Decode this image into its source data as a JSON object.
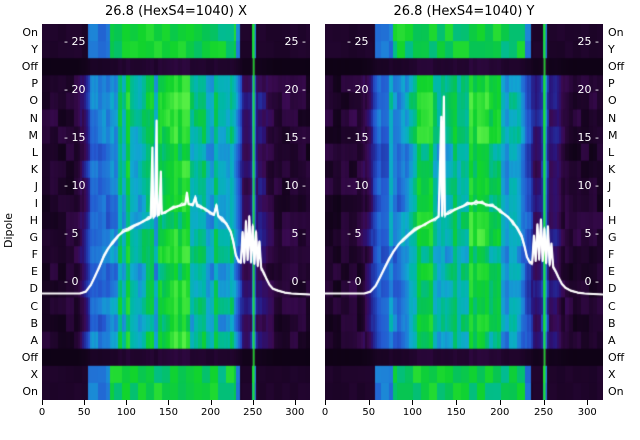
{
  "dipole_axis_label": "Dipole",
  "row_labels": [
    "On",
    "Y",
    "Off",
    "P",
    "O",
    "N",
    "M",
    "L",
    "K",
    "J",
    "I",
    "H",
    "G",
    "F",
    "E",
    "D",
    "C",
    "B",
    "A",
    "Off",
    "X",
    "On"
  ],
  "colors": {
    "background": "#ffffff",
    "title_text": "#000000",
    "axis_text": "#000000",
    "inner_tick_text": "#ffffff",
    "overlay_line": "#ffffff",
    "marker_line_green": "#28e132",
    "heat_stops": [
      {
        "v": 0.0,
        "c": "#0c0212"
      },
      {
        "v": 0.1,
        "c": "#22052f"
      },
      {
        "v": 0.17,
        "c": "#3a0a52"
      },
      {
        "v": 0.24,
        "c": "#2a1278"
      },
      {
        "v": 0.32,
        "c": "#2135a8"
      },
      {
        "v": 0.42,
        "c": "#2458d0"
      },
      {
        "v": 0.52,
        "c": "#1f7fd8"
      },
      {
        "v": 0.6,
        "c": "#10a8d0"
      },
      {
        "v": 0.68,
        "c": "#00b8a8"
      },
      {
        "v": 0.76,
        "c": "#06c455"
      },
      {
        "v": 0.85,
        "c": "#12d42c"
      },
      {
        "v": 1.0,
        "c": "#55ee44"
      }
    ]
  },
  "chart_data": [
    {
      "type": "heatmap",
      "title": "26.8 (HexS4=1040) X",
      "x_range": [
        0,
        318
      ],
      "x_ticks": [
        0,
        50,
        100,
        150,
        200,
        250,
        300
      ],
      "value_ticks": [
        25,
        20,
        15,
        10,
        5,
        0
      ],
      "rows": [
        "On",
        "Y",
        "Off",
        "P",
        "O",
        "N",
        "M",
        "L",
        "K",
        "J",
        "I",
        "H",
        "G",
        "F",
        "E",
        "D",
        "C",
        "B",
        "A",
        "Off",
        "X",
        "On"
      ],
      "off_rows": [
        2,
        19
      ],
      "edge_rows": [
        0,
        1,
        20,
        21
      ],
      "green_marker_x": 250,
      "heat_profile": [
        [
          0,
          0.1
        ],
        [
          25,
          0.11
        ],
        [
          42,
          0.12
        ],
        [
          50,
          0.3
        ],
        [
          56,
          0.5
        ],
        [
          64,
          0.58
        ],
        [
          72,
          0.6
        ],
        [
          80,
          0.62
        ],
        [
          88,
          0.68
        ],
        [
          96,
          0.8
        ],
        [
          104,
          0.86
        ],
        [
          112,
          0.82
        ],
        [
          120,
          0.88
        ],
        [
          128,
          0.84
        ],
        [
          136,
          0.8
        ],
        [
          144,
          0.9
        ],
        [
          152,
          0.95
        ],
        [
          160,
          0.92
        ],
        [
          168,
          0.95
        ],
        [
          176,
          0.93
        ],
        [
          184,
          0.88
        ],
        [
          192,
          0.86
        ],
        [
          200,
          0.82
        ],
        [
          208,
          0.78
        ],
        [
          216,
          0.74
        ],
        [
          222,
          0.7
        ],
        [
          228,
          0.62
        ],
        [
          233,
          0.45
        ],
        [
          237,
          0.28
        ],
        [
          241,
          0.22
        ],
        [
          245,
          0.26
        ],
        [
          248,
          0.35
        ],
        [
          250,
          0.92
        ],
        [
          252,
          0.45
        ],
        [
          255,
          0.22
        ],
        [
          259,
          0.24
        ],
        [
          263,
          0.26
        ],
        [
          267,
          0.2
        ],
        [
          271,
          0.15
        ],
        [
          276,
          0.13
        ],
        [
          282,
          0.12
        ],
        [
          292,
          0.11
        ],
        [
          303,
          0.1
        ],
        [
          318,
          0.1
        ]
      ],
      "overlay_line": {
        "name": "beam intensity profile",
        "points": [
          [
            0,
            -1.2
          ],
          [
            30,
            -1.2
          ],
          [
            45,
            -1.2
          ],
          [
            52,
            -1.0
          ],
          [
            58,
            -0.3
          ],
          [
            63,
            0.6
          ],
          [
            68,
            1.6
          ],
          [
            73,
            2.6
          ],
          [
            78,
            3.4
          ],
          [
            84,
            4.2
          ],
          [
            90,
            4.8
          ],
          [
            96,
            5.2
          ],
          [
            102,
            5.5
          ],
          [
            108,
            5.8
          ],
          [
            114,
            6.0
          ],
          [
            120,
            6.3
          ],
          [
            126,
            6.6
          ],
          [
            129,
            6.7
          ],
          [
            131,
            14.0
          ],
          [
            132,
            6.8
          ],
          [
            134,
            6.9
          ],
          [
            136,
            16.8
          ],
          [
            137,
            7.0
          ],
          [
            139,
            7.0
          ],
          [
            141,
            11.5
          ],
          [
            142,
            7.1
          ],
          [
            146,
            7.3
          ],
          [
            151,
            7.5
          ],
          [
            156,
            7.7
          ],
          [
            161,
            7.9
          ],
          [
            166,
            8.0
          ],
          [
            170,
            8.1
          ],
          [
            172,
            9.3
          ],
          [
            174,
            8.1
          ],
          [
            179,
            8.0
          ],
          [
            182,
            8.8
          ],
          [
            184,
            7.9
          ],
          [
            189,
            7.8
          ],
          [
            194,
            7.6
          ],
          [
            199,
            7.3
          ],
          [
            204,
            7.0
          ],
          [
            207,
            8.0
          ],
          [
            209,
            6.9
          ],
          [
            214,
            6.5
          ],
          [
            219,
            6.0
          ],
          [
            224,
            5.2
          ],
          [
            227,
            4.2
          ],
          [
            230,
            2.8
          ],
          [
            233,
            2.2
          ],
          [
            236,
            2.0
          ],
          [
            238,
            5.2
          ],
          [
            240,
            2.1
          ],
          [
            242,
            6.3
          ],
          [
            244,
            2.3
          ],
          [
            246,
            6.8
          ],
          [
            248,
            2.1
          ],
          [
            250,
            5.8
          ],
          [
            252,
            1.9
          ],
          [
            254,
            5.2
          ],
          [
            256,
            1.7
          ],
          [
            258,
            4.2
          ],
          [
            260,
            1.5
          ],
          [
            263,
            1.0
          ],
          [
            266,
            0.4
          ],
          [
            270,
            -0.3
          ],
          [
            274,
            -0.7
          ],
          [
            280,
            -0.9
          ],
          [
            288,
            -1.1
          ],
          [
            296,
            -1.2
          ],
          [
            306,
            -1.25
          ],
          [
            318,
            -1.3
          ]
        ]
      }
    },
    {
      "type": "heatmap",
      "title": "26.8 (HexS4=1040) Y",
      "x_range": [
        0,
        318
      ],
      "x_ticks": [
        0,
        50,
        100,
        150,
        200,
        250,
        300
      ],
      "value_ticks": [
        25,
        20,
        15,
        10,
        5,
        0
      ],
      "rows": [
        "On",
        "Y",
        "Off",
        "P",
        "O",
        "N",
        "M",
        "L",
        "K",
        "J",
        "I",
        "H",
        "G",
        "F",
        "E",
        "D",
        "C",
        "B",
        "A",
        "Off",
        "X",
        "On"
      ],
      "off_rows": [
        2,
        19
      ],
      "edge_rows": [
        0,
        1,
        20,
        21
      ],
      "green_marker_x": 250,
      "heat_profile": [
        [
          0,
          0.1
        ],
        [
          25,
          0.11
        ],
        [
          42,
          0.12
        ],
        [
          50,
          0.28
        ],
        [
          56,
          0.48
        ],
        [
          64,
          0.56
        ],
        [
          72,
          0.6
        ],
        [
          80,
          0.63
        ],
        [
          88,
          0.7
        ],
        [
          96,
          0.8
        ],
        [
          104,
          0.85
        ],
        [
          112,
          0.83
        ],
        [
          120,
          0.87
        ],
        [
          128,
          0.85
        ],
        [
          136,
          0.82
        ],
        [
          144,
          0.9
        ],
        [
          152,
          0.94
        ],
        [
          160,
          0.93
        ],
        [
          168,
          0.96
        ],
        [
          176,
          0.94
        ],
        [
          184,
          0.9
        ],
        [
          192,
          0.87
        ],
        [
          200,
          0.83
        ],
        [
          208,
          0.8
        ],
        [
          216,
          0.76
        ],
        [
          222,
          0.72
        ],
        [
          228,
          0.64
        ],
        [
          233,
          0.48
        ],
        [
          237,
          0.3
        ],
        [
          241,
          0.24
        ],
        [
          245,
          0.27
        ],
        [
          248,
          0.36
        ],
        [
          250,
          0.92
        ],
        [
          252,
          0.46
        ],
        [
          255,
          0.23
        ],
        [
          259,
          0.25
        ],
        [
          263,
          0.27
        ],
        [
          267,
          0.21
        ],
        [
          271,
          0.16
        ],
        [
          276,
          0.13
        ],
        [
          282,
          0.12
        ],
        [
          292,
          0.11
        ],
        [
          303,
          0.1
        ],
        [
          318,
          0.1
        ]
      ],
      "overlay_line": {
        "name": "beam intensity profile",
        "points": [
          [
            0,
            -1.2
          ],
          [
            30,
            -1.2
          ],
          [
            45,
            -1.2
          ],
          [
            52,
            -1.0
          ],
          [
            58,
            -0.4
          ],
          [
            63,
            0.5
          ],
          [
            68,
            1.4
          ],
          [
            73,
            2.3
          ],
          [
            78,
            3.1
          ],
          [
            84,
            3.9
          ],
          [
            90,
            4.5
          ],
          [
            96,
            5.0
          ],
          [
            102,
            5.4
          ],
          [
            108,
            5.7
          ],
          [
            114,
            6.0
          ],
          [
            120,
            6.3
          ],
          [
            126,
            6.6
          ],
          [
            130,
            6.8
          ],
          [
            133,
            17.2
          ],
          [
            134,
            6.9
          ],
          [
            136,
            19.3
          ],
          [
            137,
            7.0
          ],
          [
            140,
            7.1
          ],
          [
            144,
            7.3
          ],
          [
            148,
            7.5
          ],
          [
            153,
            7.7
          ],
          [
            158,
            7.9
          ],
          [
            163,
            8.1
          ],
          [
            168,
            8.2
          ],
          [
            173,
            8.3
          ],
          [
            176,
            8.3
          ],
          [
            180,
            8.2
          ],
          [
            184,
            8.1
          ],
          [
            188,
            8.0
          ],
          [
            192,
            7.9
          ],
          [
            196,
            7.7
          ],
          [
            200,
            7.4
          ],
          [
            205,
            7.1
          ],
          [
            210,
            6.7
          ],
          [
            215,
            6.2
          ],
          [
            220,
            5.6
          ],
          [
            225,
            4.8
          ],
          [
            228,
            3.8
          ],
          [
            231,
            2.6
          ],
          [
            234,
            2.1
          ],
          [
            237,
            2.0
          ],
          [
            239,
            4.8
          ],
          [
            241,
            2.2
          ],
          [
            243,
            6.0
          ],
          [
            245,
            2.4
          ],
          [
            247,
            6.5
          ],
          [
            249,
            2.2
          ],
          [
            251,
            5.5
          ],
          [
            253,
            2.0
          ],
          [
            255,
            5.8
          ],
          [
            257,
            1.8
          ],
          [
            259,
            4.0
          ],
          [
            261,
            1.6
          ],
          [
            264,
            1.1
          ],
          [
            267,
            0.5
          ],
          [
            271,
            -0.2
          ],
          [
            275,
            -0.6
          ],
          [
            281,
            -0.9
          ],
          [
            289,
            -1.1
          ],
          [
            297,
            -1.2
          ],
          [
            307,
            -1.25
          ],
          [
            318,
            -1.3
          ]
        ]
      }
    }
  ]
}
